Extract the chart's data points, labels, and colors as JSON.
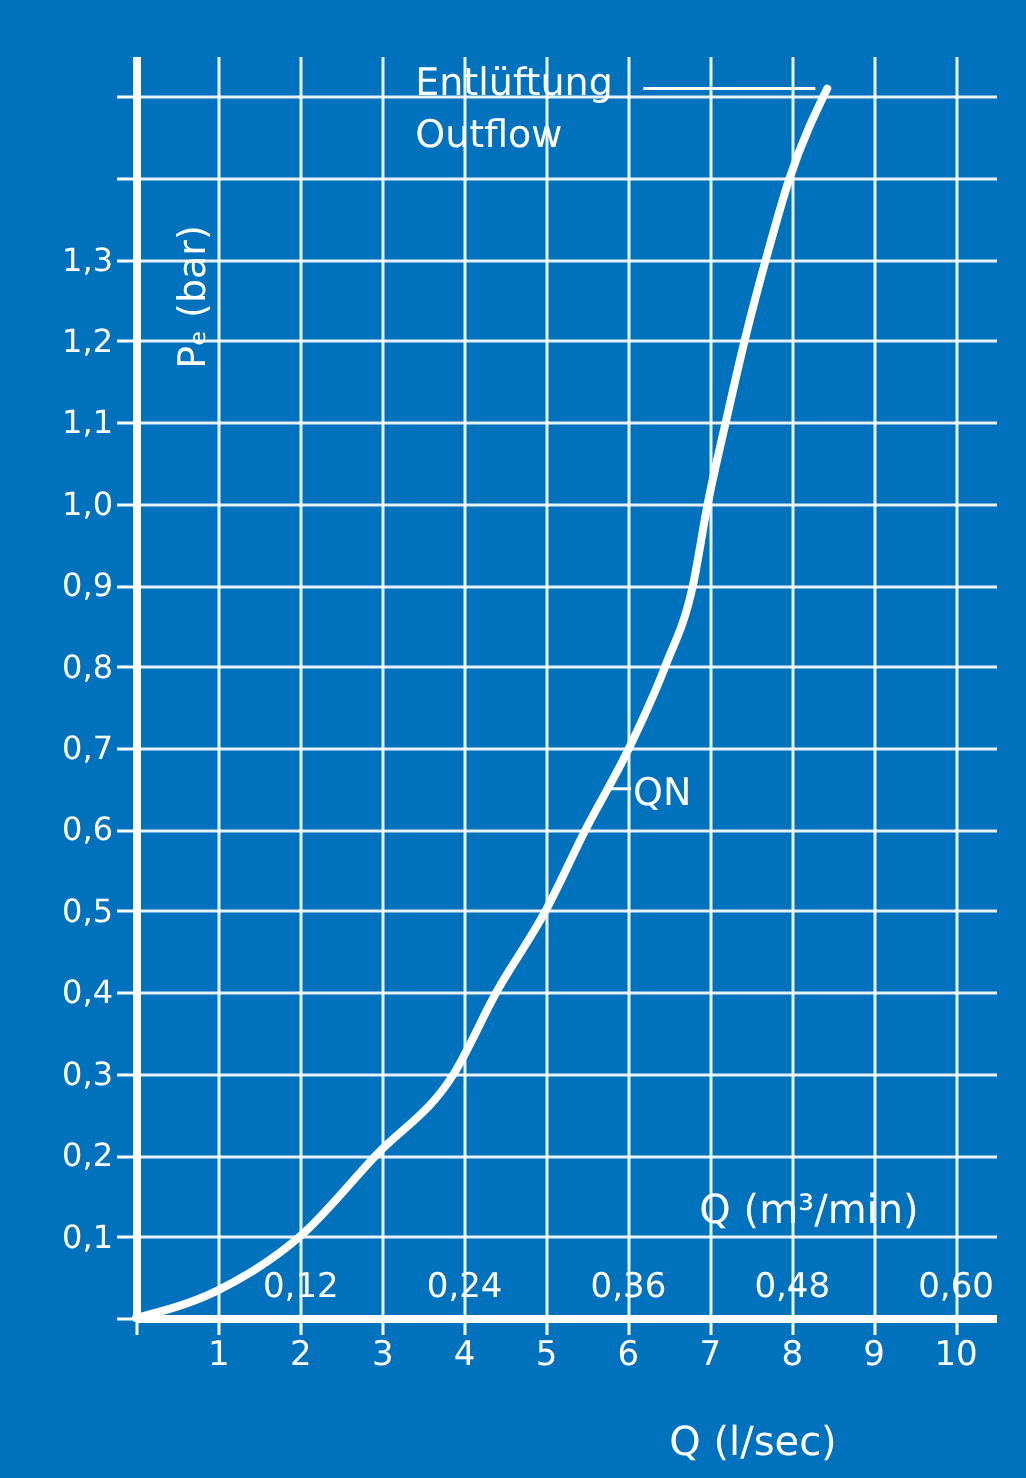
{
  "chart_data": {
    "type": "line",
    "xlabel": "Q (l/sec)",
    "ylabel": "Pₑ (bar)",
    "x2label": "Q (m³/min)",
    "x": [
      0,
      1,
      2,
      2.93,
      3.88,
      4.4,
      5.0,
      5.49,
      6.02,
      6.46,
      6.8,
      6.98,
      7.2,
      7.43,
      7.69,
      7.98,
      8.44
    ],
    "series": [
      {
        "color": "#ffffff",
        "values": [
          0,
          0.034,
          0.1,
          0.2,
          0.3,
          0.4,
          0.5,
          0.6,
          0.7,
          0.8,
          0.9,
          1.0,
          1.1,
          1.2,
          1.3,
          1.4,
          1.51
        ]
      }
    ],
    "xlim": [
      0,
      10.5
    ],
    "ylim": [
      0,
      1.55
    ],
    "xticks": [
      {
        "value": 0,
        "label": null
      },
      1,
      2,
      3,
      4,
      5,
      6,
      7,
      8,
      9,
      10
    ],
    "yticks": [
      {
        "value": 0,
        "label": null
      },
      {
        "value": 0.1,
        "label": "0,1"
      },
      {
        "value": 0.2,
        "label": "0,2"
      },
      {
        "value": 0.3,
        "label": "0,3"
      },
      {
        "value": 0.4,
        "label": "0,4"
      },
      {
        "value": 0.5,
        "label": "0,5"
      },
      {
        "value": 0.6,
        "label": "0,6"
      },
      {
        "value": 0.7,
        "label": "0,7"
      },
      {
        "value": 0.8,
        "label": "0,8"
      },
      {
        "value": 0.9,
        "label": "0,9"
      },
      {
        "value": 1.0,
        "label": "1,0"
      },
      {
        "value": 1.1,
        "label": "1,1"
      },
      {
        "value": 1.2,
        "label": "1,2"
      },
      {
        "value": 1.3,
        "label": "1,3"
      },
      {
        "value": 1.4,
        "label": null
      },
      {
        "value": 1.5,
        "label": null
      }
    ],
    "x2lim": [
      0,
      0.63
    ],
    "x2ticks": [
      {
        "value": 0.12,
        "label": "0,12"
      },
      {
        "value": 0.24,
        "label": "0,24"
      },
      {
        "value": 0.36,
        "label": "0,36"
      },
      {
        "value": 0.48,
        "label": "0,48"
      },
      {
        "value": 0.6,
        "label": "0,60"
      }
    ],
    "annotations": [
      "Entlüftung\nOutflow",
      {
        "text": "QN",
        "x": 5.8,
        "y": 0.65
      }
    ],
    "grid": true,
    "line_style": "solid",
    "marker": "none"
  }
}
